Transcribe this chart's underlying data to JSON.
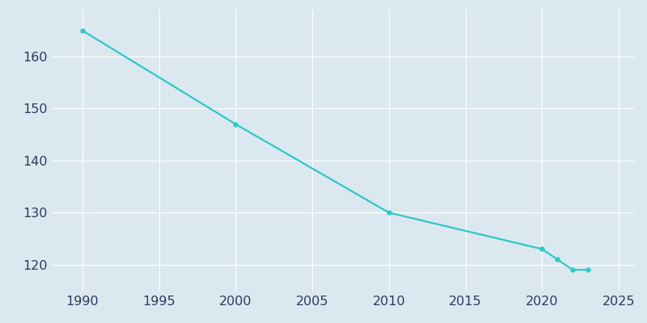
{
  "years": [
    1990,
    2000,
    2010,
    2020,
    2021,
    2022,
    2023
  ],
  "population": [
    165,
    147,
    130,
    123,
    121,
    119,
    119
  ],
  "line_color": "#2ec8c8",
  "marker": "o",
  "marker_size": 3.5,
  "line_width": 1.6,
  "background_color": "#dce8f0",
  "plot_background_color": "#dce8f0",
  "grid_color": "#ffffff",
  "xlim": [
    1988,
    2026
  ],
  "ylim": [
    115,
    169
  ],
  "xticks": [
    1990,
    1995,
    2000,
    2005,
    2010,
    2015,
    2020,
    2025
  ],
  "yticks": [
    120,
    130,
    140,
    150,
    160
  ],
  "tick_label_color": "#2b3a5c",
  "tick_fontsize": 11.5
}
